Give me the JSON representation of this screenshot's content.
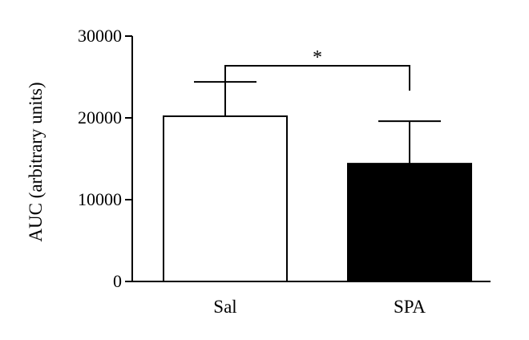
{
  "chart_data": {
    "type": "bar",
    "title": "",
    "xlabel": "",
    "ylabel": "AUC (arbitrary units)",
    "ylim": [
      0,
      30000
    ],
    "yticks": [
      0,
      10000,
      20000,
      30000
    ],
    "ytick_labels": [
      "0",
      "10000",
      "20000",
      "30000"
    ],
    "categories": [
      "Sal",
      "SPA"
    ],
    "values": [
      20200,
      14400
    ],
    "error_upper": [
      24400,
      19600
    ],
    "bar_fill_colors": [
      "#ffffff",
      "#000000"
    ],
    "bar_edge_color": "#000000",
    "grid": false,
    "significance": {
      "between": [
        "Sal",
        "SPA"
      ],
      "label": "*"
    }
  }
}
